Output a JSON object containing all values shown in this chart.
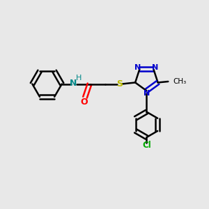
{
  "bg_color": "#e8e8e8",
  "bond_color": "#000000",
  "n_color": "#0000cc",
  "o_color": "#ff0000",
  "s_color": "#bbbb00",
  "cl_color": "#00aa00",
  "nh_color": "#008888",
  "linewidth": 1.8,
  "figsize": [
    3.0,
    3.0
  ],
  "dpi": 100,
  "xlim": [
    0,
    10
  ],
  "ylim": [
    0,
    10
  ]
}
